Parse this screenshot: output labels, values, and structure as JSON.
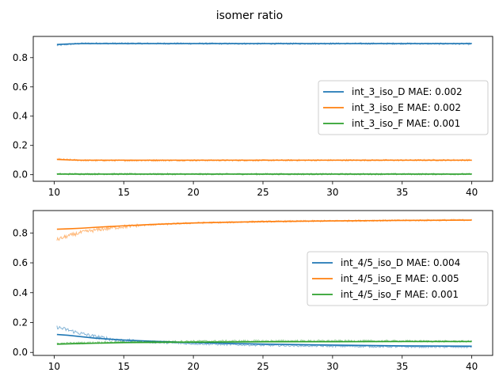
{
  "title": "isomer ratio",
  "chart_data": [
    {
      "type": "line",
      "xlim": [
        8.5,
        41.5
      ],
      "ylim": [
        -0.045,
        0.945
      ],
      "xticks": [
        10,
        15,
        20,
        25,
        30,
        35,
        40
      ],
      "yticks": [
        0.0,
        0.2,
        0.4,
        0.6,
        0.8
      ],
      "x_range": [
        10.2,
        40.0
      ],
      "legend": "center-right",
      "grid": false,
      "series": [
        {
          "name": "int_3_iso_D MAE: 0.002",
          "color": "#1f77b4",
          "fit": [
            [
              10.2,
              0.89
            ],
            [
              11,
              0.893
            ],
            [
              12,
              0.896
            ],
            [
              40,
              0.896
            ]
          ],
          "data": [
            [
              10.2,
              0.883
            ],
            [
              11,
              0.891
            ],
            [
              12,
              0.897
            ],
            [
              13,
              0.898
            ],
            [
              15,
              0.897
            ],
            [
              20,
              0.896
            ],
            [
              25,
              0.895
            ],
            [
              30,
              0.896
            ],
            [
              35,
              0.896
            ],
            [
              40,
              0.894
            ]
          ]
        },
        {
          "name": "int_3_iso_E MAE: 0.002",
          "color": "#ff7f0e",
          "fit": [
            [
              10.2,
              0.104
            ],
            [
              11,
              0.101
            ],
            [
              12,
              0.099
            ],
            [
              40,
              0.099
            ]
          ],
          "data": [
            [
              10.2,
              0.107
            ],
            [
              11,
              0.102
            ],
            [
              12,
              0.098
            ],
            [
              13,
              0.097
            ],
            [
              15,
              0.097
            ],
            [
              20,
              0.098
            ],
            [
              25,
              0.098
            ],
            [
              30,
              0.099
            ],
            [
              35,
              0.099
            ],
            [
              40,
              0.1
            ]
          ]
        },
        {
          "name": "int_3_iso_F MAE: 0.001",
          "color": "#2ca02c",
          "fit": [
            [
              10.2,
              0.004
            ],
            [
              40,
              0.004
            ]
          ],
          "data": [
            [
              10.2,
              0.005
            ],
            [
              20,
              0.004
            ],
            [
              30,
              0.004
            ],
            [
              40,
              0.004
            ]
          ]
        }
      ]
    },
    {
      "type": "line",
      "xlim": [
        8.5,
        41.5
      ],
      "ylim": [
        -0.02,
        0.95
      ],
      "xticks": [
        10,
        15,
        20,
        25,
        30,
        35,
        40
      ],
      "yticks": [
        0.0,
        0.2,
        0.4,
        0.6,
        0.8
      ],
      "x_range": [
        10.2,
        40.0
      ],
      "legend": "center-right",
      "grid": false,
      "series": [
        {
          "name": "int_4/5_iso_D MAE: 0.004",
          "color": "#1f77b4",
          "fit": [
            [
              10.2,
              0.12
            ],
            [
              11,
              0.115
            ],
            [
              12,
              0.105
            ],
            [
              13,
              0.095
            ],
            [
              15,
              0.083
            ],
            [
              17,
              0.075
            ],
            [
              20,
              0.066
            ],
            [
              25,
              0.056
            ],
            [
              30,
              0.049
            ],
            [
              35,
              0.044
            ],
            [
              40,
              0.042
            ]
          ],
          "data": [
            [
              10.2,
              0.17
            ],
            [
              11,
              0.15
            ],
            [
              12,
              0.125
            ],
            [
              13,
              0.105
            ],
            [
              14,
              0.09
            ],
            [
              15,
              0.078
            ],
            [
              17,
              0.068
            ],
            [
              20,
              0.058
            ],
            [
              25,
              0.048
            ],
            [
              30,
              0.042
            ],
            [
              35,
              0.038
            ],
            [
              40,
              0.036
            ]
          ]
        },
        {
          "name": "int_4/5_iso_E MAE: 0.005",
          "color": "#ff7f0e",
          "fit": [
            [
              10.2,
              0.825
            ],
            [
              11,
              0.828
            ],
            [
              12,
              0.832
            ],
            [
              13,
              0.838
            ],
            [
              15,
              0.848
            ],
            [
              17,
              0.857
            ],
            [
              20,
              0.867
            ],
            [
              25,
              0.876
            ],
            [
              30,
              0.881
            ],
            [
              35,
              0.884
            ],
            [
              40,
              0.886
            ]
          ],
          "data": [
            [
              10.2,
              0.755
            ],
            [
              11,
              0.78
            ],
            [
              12,
              0.805
            ],
            [
              13,
              0.82
            ],
            [
              14,
              0.832
            ],
            [
              15,
              0.842
            ],
            [
              17,
              0.855
            ],
            [
              20,
              0.867
            ],
            [
              25,
              0.876
            ],
            [
              30,
              0.881
            ],
            [
              35,
              0.884
            ],
            [
              40,
              0.887
            ]
          ]
        },
        {
          "name": "int_4/5_iso_F MAE: 0.001",
          "color": "#2ca02c",
          "fit": [
            [
              10.2,
              0.055
            ],
            [
              12,
              0.06
            ],
            [
              15,
              0.066
            ],
            [
              20,
              0.069
            ],
            [
              25,
              0.071
            ],
            [
              30,
              0.072
            ],
            [
              35,
              0.073
            ],
            [
              40,
              0.073
            ]
          ],
          "data": [
            [
              10.2,
              0.06
            ],
            [
              12,
              0.064
            ],
            [
              15,
              0.07
            ],
            [
              20,
              0.075
            ],
            [
              25,
              0.077
            ],
            [
              30,
              0.077
            ],
            [
              35,
              0.076
            ],
            [
              40,
              0.074
            ]
          ]
        }
      ]
    }
  ]
}
